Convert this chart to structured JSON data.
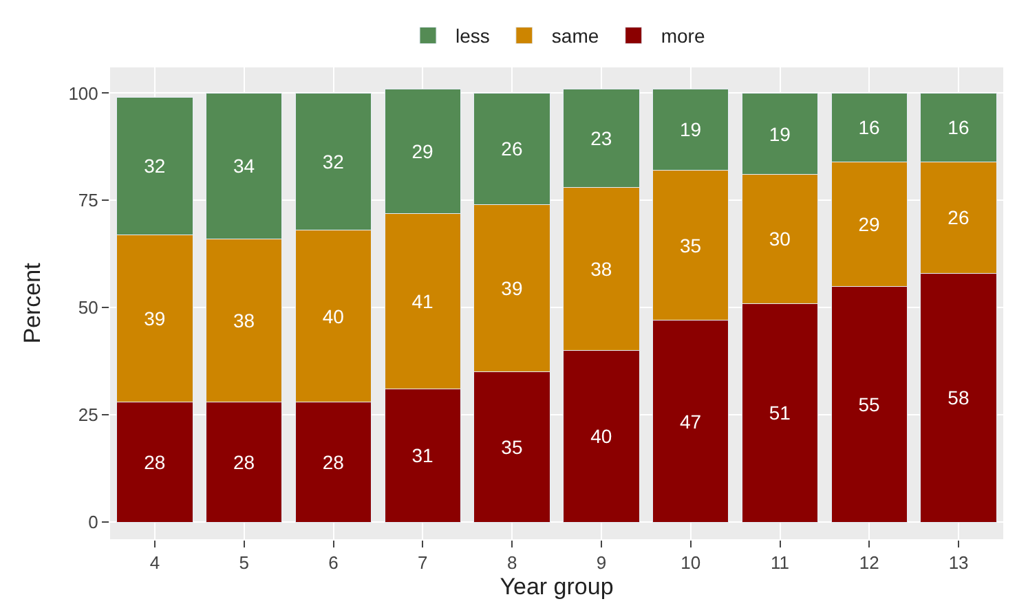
{
  "chart_data": {
    "type": "bar",
    "stacked": true,
    "xlabel": "Year group",
    "ylabel": "Percent",
    "categories": [
      "4",
      "5",
      "6",
      "7",
      "8",
      "9",
      "10",
      "11",
      "12",
      "13"
    ],
    "series": [
      {
        "name": "more",
        "color": "#8b0000",
        "values": [
          28,
          28,
          28,
          31,
          35,
          40,
          47,
          51,
          55,
          58
        ]
      },
      {
        "name": "same",
        "color": "#cd8500",
        "values": [
          39,
          38,
          40,
          41,
          39,
          38,
          35,
          30,
          29,
          26
        ]
      },
      {
        "name": "less",
        "color": "#548b54",
        "values": [
          32,
          34,
          32,
          29,
          26,
          23,
          19,
          19,
          16,
          16
        ]
      }
    ],
    "ylim": [
      -4,
      106
    ],
    "yticks": [
      0,
      25,
      50,
      75,
      100
    ],
    "grid": true,
    "legend": "top",
    "data_labels": true
  }
}
